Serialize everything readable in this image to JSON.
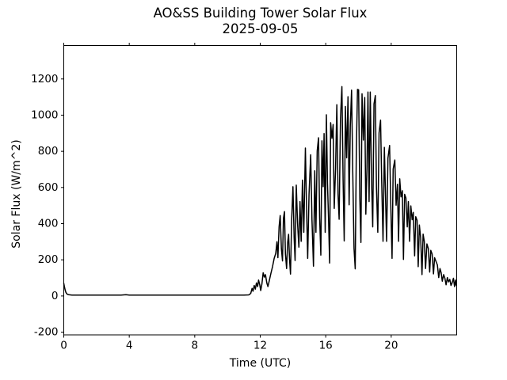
{
  "chart_data": {
    "type": "line",
    "title": "AO&SS Building Tower Solar Flux",
    "subtitle": "2025-09-05",
    "xlabel": "Time (UTC)",
    "ylabel": "Solar Flux (W/m^2)",
    "xlim": [
      0,
      24
    ],
    "ylim": [
      -215,
      1385
    ],
    "xticks": [
      0,
      4,
      8,
      12,
      16,
      20
    ],
    "yticks": [
      -200,
      0,
      200,
      400,
      600,
      800,
      1000,
      1200
    ],
    "grid": false,
    "legend": "none",
    "background": "#ffffff",
    "line_color": "#000000",
    "line_width": 1.5,
    "series": [
      {
        "name": "solar_flux",
        "points": [
          [
            0.0,
            70
          ],
          [
            0.04,
            52
          ],
          [
            0.08,
            34
          ],
          [
            0.13,
            20
          ],
          [
            0.2,
            11
          ],
          [
            0.3,
            7
          ],
          [
            0.5,
            5
          ],
          [
            1.0,
            5
          ],
          [
            1.5,
            5
          ],
          [
            2.0,
            5
          ],
          [
            2.5,
            5
          ],
          [
            3.0,
            5
          ],
          [
            3.5,
            5
          ],
          [
            3.8,
            7
          ],
          [
            4.0,
            5
          ],
          [
            5.0,
            5
          ],
          [
            6.0,
            5
          ],
          [
            7.0,
            5
          ],
          [
            8.0,
            5
          ],
          [
            9.0,
            5
          ],
          [
            10.0,
            5
          ],
          [
            10.5,
            5
          ],
          [
            11.0,
            5
          ],
          [
            11.3,
            6
          ],
          [
            11.42,
            14
          ],
          [
            11.5,
            42
          ],
          [
            11.56,
            26
          ],
          [
            11.63,
            58
          ],
          [
            11.7,
            38
          ],
          [
            11.77,
            72
          ],
          [
            11.84,
            52
          ],
          [
            11.9,
            88
          ],
          [
            11.97,
            62
          ],
          [
            12.03,
            30
          ],
          [
            12.1,
            66
          ],
          [
            12.18,
            128
          ],
          [
            12.25,
            104
          ],
          [
            12.32,
            118
          ],
          [
            12.4,
            72
          ],
          [
            12.47,
            52
          ],
          [
            12.55,
            84
          ],
          [
            12.65,
            124
          ],
          [
            12.75,
            162
          ],
          [
            12.85,
            208
          ],
          [
            12.95,
            236
          ],
          [
            13.02,
            300
          ],
          [
            13.08,
            212
          ],
          [
            13.15,
            382
          ],
          [
            13.22,
            445
          ],
          [
            13.29,
            262
          ],
          [
            13.36,
            194
          ],
          [
            13.42,
            430
          ],
          [
            13.48,
            467
          ],
          [
            13.54,
            232
          ],
          [
            13.61,
            152
          ],
          [
            13.67,
            292
          ],
          [
            13.73,
            341
          ],
          [
            13.79,
            202
          ],
          [
            13.85,
            121
          ],
          [
            13.92,
            424
          ],
          [
            14.0,
            604
          ],
          [
            14.07,
            322
          ],
          [
            14.13,
            196
          ],
          [
            14.2,
            613
          ],
          [
            14.28,
            404
          ],
          [
            14.36,
            270
          ],
          [
            14.43,
            522
          ],
          [
            14.5,
            302
          ],
          [
            14.58,
            641
          ],
          [
            14.66,
            352
          ],
          [
            14.76,
            818
          ],
          [
            14.83,
            484
          ],
          [
            14.9,
            208
          ],
          [
            14.98,
            562
          ],
          [
            15.08,
            781
          ],
          [
            15.16,
            422
          ],
          [
            15.25,
            165
          ],
          [
            15.33,
            692
          ],
          [
            15.4,
            352
          ],
          [
            15.48,
            802
          ],
          [
            15.56,
            875
          ],
          [
            15.63,
            432
          ],
          [
            15.7,
            226
          ],
          [
            15.77,
            858
          ],
          [
            15.84,
            604
          ],
          [
            15.9,
            898
          ],
          [
            15.97,
            352
          ],
          [
            16.04,
            1002
          ],
          [
            16.11,
            622
          ],
          [
            16.17,
            432
          ],
          [
            16.24,
            182
          ],
          [
            16.3,
            958
          ],
          [
            16.38,
            872
          ],
          [
            16.45,
            948
          ],
          [
            16.52,
            484
          ],
          [
            16.6,
            704
          ],
          [
            16.68,
            1058
          ],
          [
            16.75,
            564
          ],
          [
            16.82,
            424
          ],
          [
            16.9,
            982
          ],
          [
            16.99,
            1158
          ],
          [
            17.06,
            642
          ],
          [
            17.13,
            304
          ],
          [
            17.2,
            1048
          ],
          [
            17.28,
            764
          ],
          [
            17.36,
            1102
          ],
          [
            17.43,
            504
          ],
          [
            17.5,
            942
          ],
          [
            17.58,
            1138
          ],
          [
            17.65,
            684
          ],
          [
            17.73,
            262
          ],
          [
            17.8,
            150
          ],
          [
            17.87,
            804
          ],
          [
            17.94,
            1142
          ],
          [
            18.01,
            1140
          ],
          [
            18.08,
            544
          ],
          [
            18.15,
            296
          ],
          [
            18.22,
            1118
          ],
          [
            18.3,
            862
          ],
          [
            18.38,
            1098
          ],
          [
            18.45,
            452
          ],
          [
            18.52,
            702
          ],
          [
            18.58,
            1128
          ],
          [
            18.65,
            522
          ],
          [
            18.72,
            1128
          ],
          [
            18.8,
            642
          ],
          [
            18.87,
            382
          ],
          [
            18.95,
            1062
          ],
          [
            19.03,
            1108
          ],
          [
            19.1,
            602
          ],
          [
            19.18,
            352
          ],
          [
            19.26,
            902
          ],
          [
            19.35,
            972
          ],
          [
            19.42,
            642
          ],
          [
            19.5,
            302
          ],
          [
            19.58,
            822
          ],
          [
            19.65,
            562
          ],
          [
            19.72,
            302
          ],
          [
            19.8,
            762
          ],
          [
            19.9,
            832
          ],
          [
            19.98,
            482
          ],
          [
            20.05,
            208
          ],
          [
            20.12,
            702
          ],
          [
            20.22,
            752
          ],
          [
            20.3,
            502
          ],
          [
            20.38,
            618
          ],
          [
            20.45,
            302
          ],
          [
            20.52,
            648
          ],
          [
            20.6,
            548
          ],
          [
            20.68,
            582
          ],
          [
            20.75,
            202
          ],
          [
            20.82,
            562
          ],
          [
            20.9,
            542
          ],
          [
            20.98,
            382
          ],
          [
            21.05,
            522
          ],
          [
            21.12,
            302
          ],
          [
            21.2,
            498
          ],
          [
            21.28,
            422
          ],
          [
            21.35,
            462
          ],
          [
            21.43,
            222
          ],
          [
            21.5,
            438
          ],
          [
            21.58,
            418
          ],
          [
            21.65,
            162
          ],
          [
            21.72,
            392
          ],
          [
            21.8,
            322
          ],
          [
            21.88,
            118
          ],
          [
            21.95,
            342
          ],
          [
            22.02,
            302
          ],
          [
            22.1,
            152
          ],
          [
            22.18,
            288
          ],
          [
            22.27,
            262
          ],
          [
            22.35,
            132
          ],
          [
            22.42,
            252
          ],
          [
            22.5,
            232
          ],
          [
            22.58,
            122
          ],
          [
            22.65,
            212
          ],
          [
            22.73,
            192
          ],
          [
            22.82,
            172
          ],
          [
            22.9,
            102
          ],
          [
            22.98,
            152
          ],
          [
            23.05,
            128
          ],
          [
            23.12,
            82
          ],
          [
            23.2,
            118
          ],
          [
            23.28,
            98
          ],
          [
            23.35,
            62
          ],
          [
            23.43,
            102
          ],
          [
            23.5,
            78
          ],
          [
            23.58,
            92
          ],
          [
            23.65,
            58
          ],
          [
            23.72,
            72
          ],
          [
            23.8,
            98
          ],
          [
            23.87,
            52
          ],
          [
            23.93,
            88
          ],
          [
            23.97,
            60
          ]
        ]
      }
    ]
  }
}
